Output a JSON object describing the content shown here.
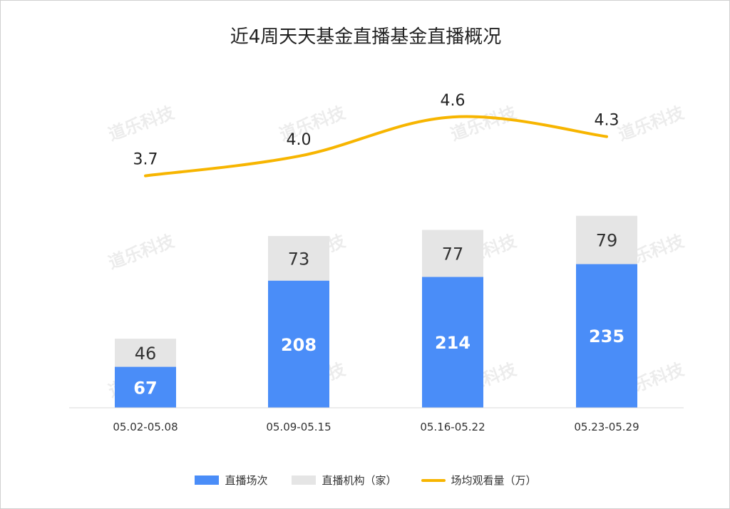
{
  "chart_data": {
    "type": "bar",
    "stacked": true,
    "title": "近4周天天基金直播基金直播概况",
    "categories": [
      "05.02-05.08",
      "05.09-05.15",
      "05.16-05.22",
      "05.23-05.29"
    ],
    "series": [
      {
        "name": "直播场次",
        "type": "bar",
        "color": "#4a8df8",
        "values": [
          67,
          208,
          214,
          235
        ]
      },
      {
        "name": "直播机构（家）",
        "type": "bar",
        "color": "#e5e5e5",
        "values": [
          46,
          73,
          77,
          79
        ]
      },
      {
        "name": "场均观看量（万）",
        "type": "line",
        "color": "#f7b500",
        "values": [
          3.7,
          4.0,
          4.6,
          4.3
        ]
      }
    ],
    "legend_position": "bottom",
    "grid": false
  },
  "watermark_text": "道乐科技"
}
